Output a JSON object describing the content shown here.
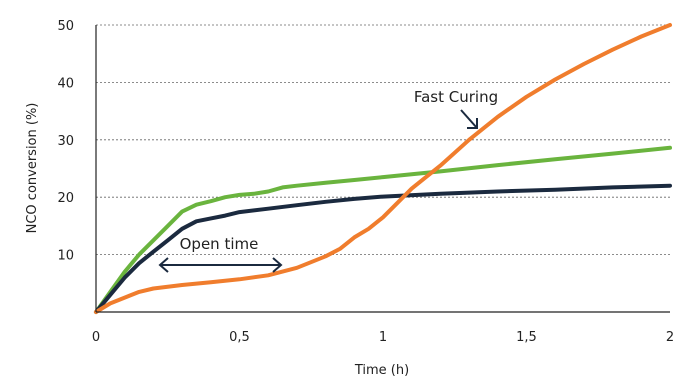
{
  "chart_data": {
    "type": "line",
    "title": "",
    "xlabel": "Time (h)",
    "ylabel": "NCO conversion (%)",
    "xlim": [
      0,
      2
    ],
    "ylim": [
      0,
      50
    ],
    "x_ticks": [
      {
        "value": 0,
        "label": "0"
      },
      {
        "value": 0.5,
        "label": "0,5"
      },
      {
        "value": 1,
        "label": "1"
      },
      {
        "value": 1.5,
        "label": "1,5"
      },
      {
        "value": 2,
        "label": "2"
      }
    ],
    "y_ticks": [
      {
        "value": 10,
        "label": "10"
      },
      {
        "value": 20,
        "label": "20"
      },
      {
        "value": 30,
        "label": "30"
      },
      {
        "value": 40,
        "label": "40"
      },
      {
        "value": 50,
        "label": "50"
      }
    ],
    "grid": "horizontal-dotted",
    "series": [
      {
        "color": "#6ab43e",
        "points": [
          [
            0,
            0
          ],
          [
            0.05,
            3.5
          ],
          [
            0.1,
            7
          ],
          [
            0.15,
            10
          ],
          [
            0.2,
            12.5
          ],
          [
            0.25,
            15
          ],
          [
            0.3,
            17.5
          ],
          [
            0.35,
            18.7
          ],
          [
            0.4,
            19.3
          ],
          [
            0.45,
            20
          ],
          [
            0.5,
            20.4
          ],
          [
            0.55,
            20.6
          ],
          [
            0.6,
            21
          ],
          [
            0.65,
            21.7
          ],
          [
            0.7,
            22
          ],
          [
            0.8,
            22.5
          ],
          [
            0.9,
            23
          ],
          [
            1,
            23.5
          ],
          [
            1.2,
            24.5
          ],
          [
            1.4,
            25.6
          ],
          [
            1.6,
            26.6
          ],
          [
            1.8,
            27.6
          ],
          [
            2,
            28.6
          ]
        ]
      },
      {
        "color": "#1b2a3f",
        "points": [
          [
            0,
            0
          ],
          [
            0.05,
            3
          ],
          [
            0.1,
            6
          ],
          [
            0.15,
            8.5
          ],
          [
            0.2,
            10.5
          ],
          [
            0.25,
            12.5
          ],
          [
            0.3,
            14.5
          ],
          [
            0.35,
            15.8
          ],
          [
            0.4,
            16.3
          ],
          [
            0.45,
            16.8
          ],
          [
            0.5,
            17.4
          ],
          [
            0.6,
            18
          ],
          [
            0.7,
            18.6
          ],
          [
            0.8,
            19.2
          ],
          [
            0.9,
            19.7
          ],
          [
            1,
            20.1
          ],
          [
            1.2,
            20.6
          ],
          [
            1.4,
            21
          ],
          [
            1.6,
            21.3
          ],
          [
            1.8,
            21.7
          ],
          [
            2,
            22
          ]
        ]
      },
      {
        "color": "#f07d2d",
        "points": [
          [
            0,
            0
          ],
          [
            0.05,
            1.5
          ],
          [
            0.1,
            2.5
          ],
          [
            0.15,
            3.5
          ],
          [
            0.2,
            4.1
          ],
          [
            0.3,
            4.7
          ],
          [
            0.4,
            5.2
          ],
          [
            0.5,
            5.7
          ],
          [
            0.6,
            6.4
          ],
          [
            0.7,
            7.7
          ],
          [
            0.8,
            9.7
          ],
          [
            0.85,
            11
          ],
          [
            0.9,
            13
          ],
          [
            0.95,
            14.5
          ],
          [
            1,
            16.5
          ],
          [
            1.05,
            19
          ],
          [
            1.1,
            21.5
          ],
          [
            1.15,
            23.5
          ],
          [
            1.2,
            25.5
          ],
          [
            1.3,
            30
          ],
          [
            1.4,
            34
          ],
          [
            1.5,
            37.5
          ],
          [
            1.6,
            40.5
          ],
          [
            1.7,
            43.2
          ],
          [
            1.8,
            45.7
          ],
          [
            1.9,
            48
          ],
          [
            2,
            50
          ]
        ]
      }
    ],
    "annotations": [
      {
        "text": "Fast Curing",
        "color": "#1b2a3f"
      },
      {
        "text": "Open time",
        "color": "#1b2a3f"
      }
    ]
  }
}
